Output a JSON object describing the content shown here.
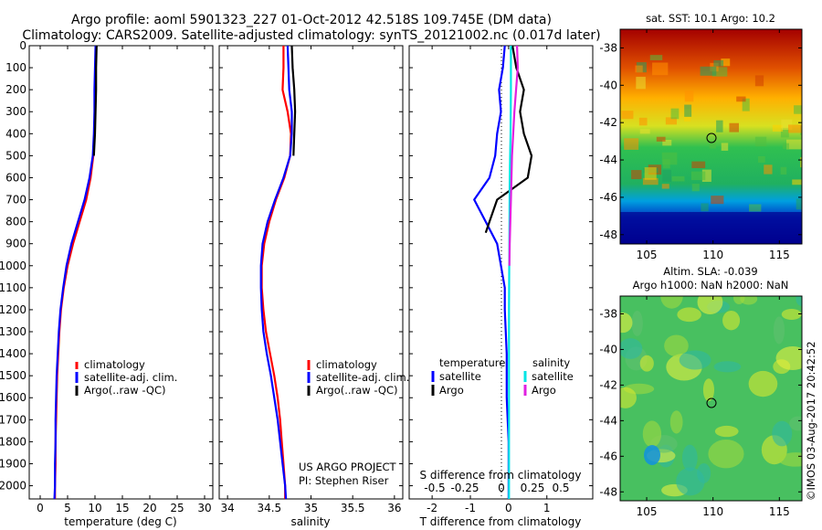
{
  "header": {
    "title_line1": "Argo profile: aoml 5901323_227 01-Oct-2012 42.518S 109.745E (DM data)",
    "title_line2": "Climatology: CARS2009. Satellite-adjusted climatology: synTS_20121002.nc (0.017d later)"
  },
  "colors": {
    "climatology": "#ff0000",
    "satellite": "#0000ff",
    "argo": "#000000",
    "sal_satellite": "#00e5e5",
    "sal_argo": "#e020e0"
  },
  "y_ticks": [
    0,
    100,
    200,
    300,
    400,
    500,
    600,
    700,
    800,
    900,
    1000,
    1100,
    1200,
    1300,
    1400,
    1500,
    1600,
    1700,
    1800,
    1900,
    2000
  ],
  "panels": {
    "temperature": {
      "xlabel": "temperature (deg C)",
      "x_ticks": [
        "0",
        "5",
        "10",
        "15",
        "20",
        "25",
        "30"
      ],
      "legend": [
        "climatology",
        "satellite-adj. clim.",
        "Argo(..raw -QC)"
      ]
    },
    "salinity": {
      "xlabel": "salinity",
      "x_ticks": [
        "34",
        "34.5",
        "35",
        "35.5",
        "36"
      ],
      "legend": [
        "climatology",
        "satellite-adj. clim.",
        "Argo(..raw -QC)"
      ],
      "credit1": "US ARGO PROJECT",
      "credit2": "PI: Stephen Riser"
    },
    "difference": {
      "xlabel": "T difference from climatology",
      "x_ticks": [
        "-2",
        "-1",
        "0",
        "1"
      ],
      "top_label": "S difference from climatology",
      "top_ticks": [
        "-0.5",
        "-0.25",
        "0",
        "0.25",
        "0.5"
      ],
      "legend_temp_title": "temperature",
      "legend_sal_title": "salinity",
      "legend_temp": [
        "satellite",
        "Argo"
      ],
      "legend_sal": [
        "satellite",
        "Argo"
      ]
    }
  },
  "maps": {
    "sst": {
      "title": "sat. SST: 10.1  Argo: 10.2",
      "y_ticks": [
        "-38",
        "-40",
        "-42",
        "-44",
        "-46",
        "-48"
      ],
      "x_ticks": [
        "105",
        "110",
        "115"
      ]
    },
    "sla": {
      "title_line1": "Altim. SLA: -0.039",
      "title_line2": "Argo h1000: NaN h2000: NaN",
      "y_ticks": [
        "-38",
        "-40",
        "-42",
        "-44",
        "-46",
        "-48"
      ],
      "x_ticks": [
        "105",
        "110",
        "115"
      ]
    }
  },
  "watermark": "©IMOS 03-Aug-2017 20:42:52",
  "chart_data": [
    {
      "type": "line",
      "name": "temperature profile",
      "xlabel": "temperature (deg C)",
      "ylabel": "",
      "xlim": [
        -2,
        31.5
      ],
      "ylim": [
        2060,
        0
      ],
      "series": [
        {
          "name": "climatology",
          "color": "#ff0000",
          "points": [
            [
              10.2,
              0
            ],
            [
              10.1,
              100
            ],
            [
              10.0,
              200
            ],
            [
              10.0,
              300
            ],
            [
              9.9,
              400
            ],
            [
              9.7,
              500
            ],
            [
              9.2,
              600
            ],
            [
              8.4,
              700
            ],
            [
              7.2,
              800
            ],
            [
              6.0,
              900
            ],
            [
              5.0,
              1000
            ],
            [
              4.3,
              1100
            ],
            [
              3.8,
              1200
            ],
            [
              3.5,
              1300
            ],
            [
              3.3,
              1400
            ],
            [
              3.1,
              1500
            ],
            [
              3.0,
              1600
            ],
            [
              2.9,
              1700
            ],
            [
              2.8,
              1800
            ],
            [
              2.8,
              1900
            ],
            [
              2.7,
              2000
            ],
            [
              2.7,
              2060
            ]
          ]
        },
        {
          "name": "satellite-adj. clim.",
          "color": "#0000ff",
          "points": [
            [
              10.1,
              0
            ],
            [
              10.0,
              100
            ],
            [
              9.9,
              200
            ],
            [
              9.9,
              300
            ],
            [
              9.8,
              400
            ],
            [
              9.6,
              500
            ],
            [
              9.0,
              600
            ],
            [
              8.1,
              700
            ],
            [
              6.9,
              800
            ],
            [
              5.7,
              900
            ],
            [
              4.8,
              1000
            ],
            [
              4.2,
              1100
            ],
            [
              3.7,
              1200
            ],
            [
              3.4,
              1300
            ],
            [
              3.2,
              1400
            ],
            [
              3.0,
              1500
            ],
            [
              2.9,
              1600
            ],
            [
              2.8,
              1700
            ],
            [
              2.8,
              1800
            ],
            [
              2.7,
              1900
            ],
            [
              2.7,
              2000
            ],
            [
              2.6,
              2060
            ]
          ]
        },
        {
          "name": "Argo(..raw -QC)",
          "color": "#000000",
          "points": [
            [
              10.3,
              0
            ],
            [
              10.2,
              100
            ],
            [
              10.2,
              200
            ],
            [
              10.1,
              300
            ],
            [
              10.0,
              400
            ],
            [
              9.8,
              500
            ]
          ]
        }
      ]
    },
    {
      "type": "line",
      "name": "salinity profile",
      "xlabel": "salinity",
      "ylabel": "",
      "xlim": [
        33.9,
        36.1
      ],
      "ylim": [
        2060,
        0
      ],
      "series": [
        {
          "name": "climatology",
          "color": "#ff0000",
          "points": [
            [
              34.67,
              0
            ],
            [
              34.67,
              100
            ],
            [
              34.66,
              200
            ],
            [
              34.72,
              300
            ],
            [
              34.76,
              400
            ],
            [
              34.75,
              500
            ],
            [
              34.68,
              600
            ],
            [
              34.58,
              700
            ],
            [
              34.5,
              800
            ],
            [
              34.44,
              900
            ],
            [
              34.41,
              1000
            ],
            [
              34.41,
              1100
            ],
            [
              34.43,
              1200
            ],
            [
              34.46,
              1300
            ],
            [
              34.51,
              1400
            ],
            [
              34.56,
              1500
            ],
            [
              34.6,
              1600
            ],
            [
              34.63,
              1700
            ],
            [
              34.65,
              1800
            ],
            [
              34.67,
              1900
            ],
            [
              34.69,
              2000
            ],
            [
              34.69,
              2060
            ]
          ]
        },
        {
          "name": "satellite-adj. clim.",
          "color": "#0000ff",
          "points": [
            [
              34.72,
              0
            ],
            [
              34.73,
              100
            ],
            [
              34.74,
              200
            ],
            [
              34.77,
              300
            ],
            [
              34.77,
              400
            ],
            [
              34.75,
              500
            ],
            [
              34.67,
              600
            ],
            [
              34.57,
              700
            ],
            [
              34.48,
              800
            ],
            [
              34.42,
              900
            ],
            [
              34.4,
              1000
            ],
            [
              34.4,
              1100
            ],
            [
              34.41,
              1200
            ],
            [
              34.43,
              1300
            ],
            [
              34.47,
              1400
            ],
            [
              34.52,
              1500
            ],
            [
              34.56,
              1600
            ],
            [
              34.6,
              1700
            ],
            [
              34.63,
              1800
            ],
            [
              34.66,
              1900
            ],
            [
              34.69,
              2000
            ],
            [
              34.7,
              2060
            ]
          ]
        },
        {
          "name": "Argo(..raw -QC)",
          "color": "#000000",
          "points": [
            [
              34.77,
              0
            ],
            [
              34.78,
              100
            ],
            [
              34.8,
              200
            ],
            [
              34.81,
              300
            ],
            [
              34.8,
              400
            ],
            [
              34.79,
              500
            ]
          ]
        }
      ]
    },
    {
      "type": "line",
      "name": "difference from climatology",
      "xlabel": "T difference from climatology",
      "ylabel": "",
      "xlim": [
        -2.6,
        2.2
      ],
      "ylim": [
        2060,
        0
      ],
      "series": [
        {
          "name": "temperature satellite",
          "color": "#0000ff",
          "points": [
            [
              -0.1,
              0
            ],
            [
              -0.15,
              100
            ],
            [
              -0.25,
              200
            ],
            [
              -0.2,
              300
            ],
            [
              -0.3,
              400
            ],
            [
              -0.35,
              500
            ],
            [
              -0.5,
              600
            ],
            [
              -0.9,
              700
            ],
            [
              -0.6,
              800
            ],
            [
              -0.3,
              900
            ],
            [
              -0.2,
              1000
            ],
            [
              -0.1,
              1100
            ],
            [
              -0.1,
              1200
            ],
            [
              -0.05,
              1400
            ],
            [
              -0.05,
              1600
            ],
            [
              0,
              1800
            ],
            [
              0,
              2060
            ]
          ]
        },
        {
          "name": "temperature Argo",
          "color": "#000000",
          "points": [
            [
              0.1,
              0
            ],
            [
              0.2,
              100
            ],
            [
              0.4,
              200
            ],
            [
              0.3,
              300
            ],
            [
              0.4,
              400
            ],
            [
              0.6,
              500
            ],
            [
              0.5,
              600
            ],
            [
              -0.3,
              700
            ],
            [
              -0.5,
              800
            ],
            [
              -0.6,
              850
            ]
          ]
        },
        {
          "name": "salinity satellite",
          "color": "#00e5e5",
          "points": [
            [
              0.06,
              0
            ],
            [
              0.06,
              200
            ],
            [
              0.05,
              400
            ],
            [
              0.03,
              600
            ],
            [
              0.02,
              900
            ],
            [
              0.01,
              1200
            ],
            [
              0.01,
              1600
            ],
            [
              0.01,
              2060
            ]
          ]
        },
        {
          "name": "salinity Argo",
          "color": "#e020e0",
          "points": [
            [
              0.22,
              0
            ],
            [
              0.24,
              100
            ],
            [
              0.15,
              300
            ],
            [
              0.09,
              500
            ],
            [
              0.06,
              700
            ],
            [
              0.03,
              900
            ],
            [
              0.02,
              1000
            ]
          ]
        }
      ]
    }
  ]
}
